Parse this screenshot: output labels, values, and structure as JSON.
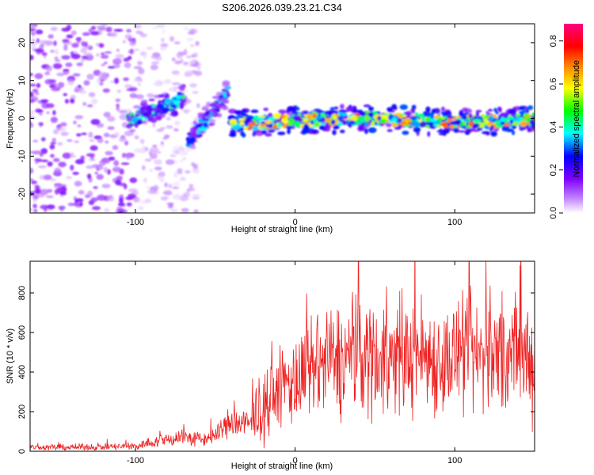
{
  "title": "S206.2026.039.23.21.C34",
  "chart_data": [
    {
      "type": "heatmap",
      "title": "S206.2026.039.23.21.C34",
      "xlabel": "Height of straight line (km)",
      "ylabel": "Frequency (Hz)",
      "xlim": [
        -166,
        150
      ],
      "ylim": [
        -25,
        25
      ],
      "x_ticks": [
        -100,
        0,
        100
      ],
      "y_ticks": [
        -20,
        -10,
        0,
        10,
        20
      ],
      "x_tick_labels": [
        "-100",
        "0",
        "100"
      ],
      "y_tick_labels": [
        "-20",
        "-10",
        "0",
        "10",
        "20"
      ],
      "colorbar": {
        "label": "Normalized spectral amplitude",
        "range": [
          0,
          0.88
        ],
        "ticks": [
          0.0,
          0.2,
          0.4,
          0.6,
          0.8
        ],
        "tick_labels": [
          "0.0",
          "0.2",
          "0.4",
          "0.6",
          "0.8"
        ],
        "colors": [
          "#ffffff",
          "#7f00ff",
          "#0000ff",
          "#00ffff",
          "#00ff00",
          "#ffff00",
          "#ff8000",
          "#ff0000",
          "#ff0080"
        ]
      },
      "features": [
        {
          "name": "diffuse noise",
          "x_range": [
            -166,
            -100
          ],
          "f_range": [
            -25,
            25
          ],
          "amplitude": 0.1
        },
        {
          "name": "rising trace 1",
          "x": [
            -105,
            -90,
            -75,
            -70
          ],
          "f": [
            -1,
            2,
            4,
            6
          ],
          "amplitude": 0.35
        },
        {
          "name": "rising trace 2",
          "x": [
            -67,
            -55,
            -42
          ],
          "f": [
            -6,
            0,
            7
          ],
          "amplitude": 0.3
        },
        {
          "name": "main trace",
          "x": [
            -40,
            0,
            50,
            100,
            150
          ],
          "f": [
            -1.5,
            -0.5,
            0,
            -1,
            -0.5
          ],
          "amplitude": 0.55
        }
      ]
    },
    {
      "type": "line",
      "xlabel": "Height of straight line (km)",
      "ylabel": "SNR (10 * v/v)",
      "xlim": [
        -166,
        150
      ],
      "ylim": [
        0,
        960
      ],
      "x_ticks": [
        -100,
        0,
        100
      ],
      "y_ticks": [
        0,
        200,
        400,
        600,
        800
      ],
      "x_tick_labels": [
        "-100",
        "0",
        "100"
      ],
      "y_tick_labels": [
        "0",
        "200",
        "400",
        "600",
        "800"
      ],
      "series": [
        {
          "name": "SNR",
          "color": "#ee2222",
          "x": [
            -166,
            -140,
            -120,
            -100,
            -90,
            -80,
            -70,
            -60,
            -50,
            -40,
            -30,
            -25,
            -20,
            -15,
            -10,
            -5,
            0,
            10,
            20,
            30,
            40,
            50,
            60,
            70,
            80,
            90,
            100,
            110,
            120,
            130,
            140,
            150
          ],
          "mean": [
            20,
            20,
            22,
            25,
            45,
            60,
            75,
            55,
            80,
            150,
            130,
            160,
            200,
            250,
            310,
            350,
            340,
            400,
            450,
            460,
            500,
            480,
            460,
            470,
            500,
            450,
            480,
            460,
            500,
            480,
            470,
            480
          ],
          "spread": [
            15,
            15,
            15,
            20,
            25,
            35,
            45,
            35,
            40,
            80,
            80,
            100,
            130,
            160,
            180,
            200,
            200,
            230,
            250,
            260,
            280,
            280,
            260,
            250,
            260,
            250,
            260,
            260,
            280,
            280,
            280,
            280
          ]
        }
      ]
    }
  ]
}
